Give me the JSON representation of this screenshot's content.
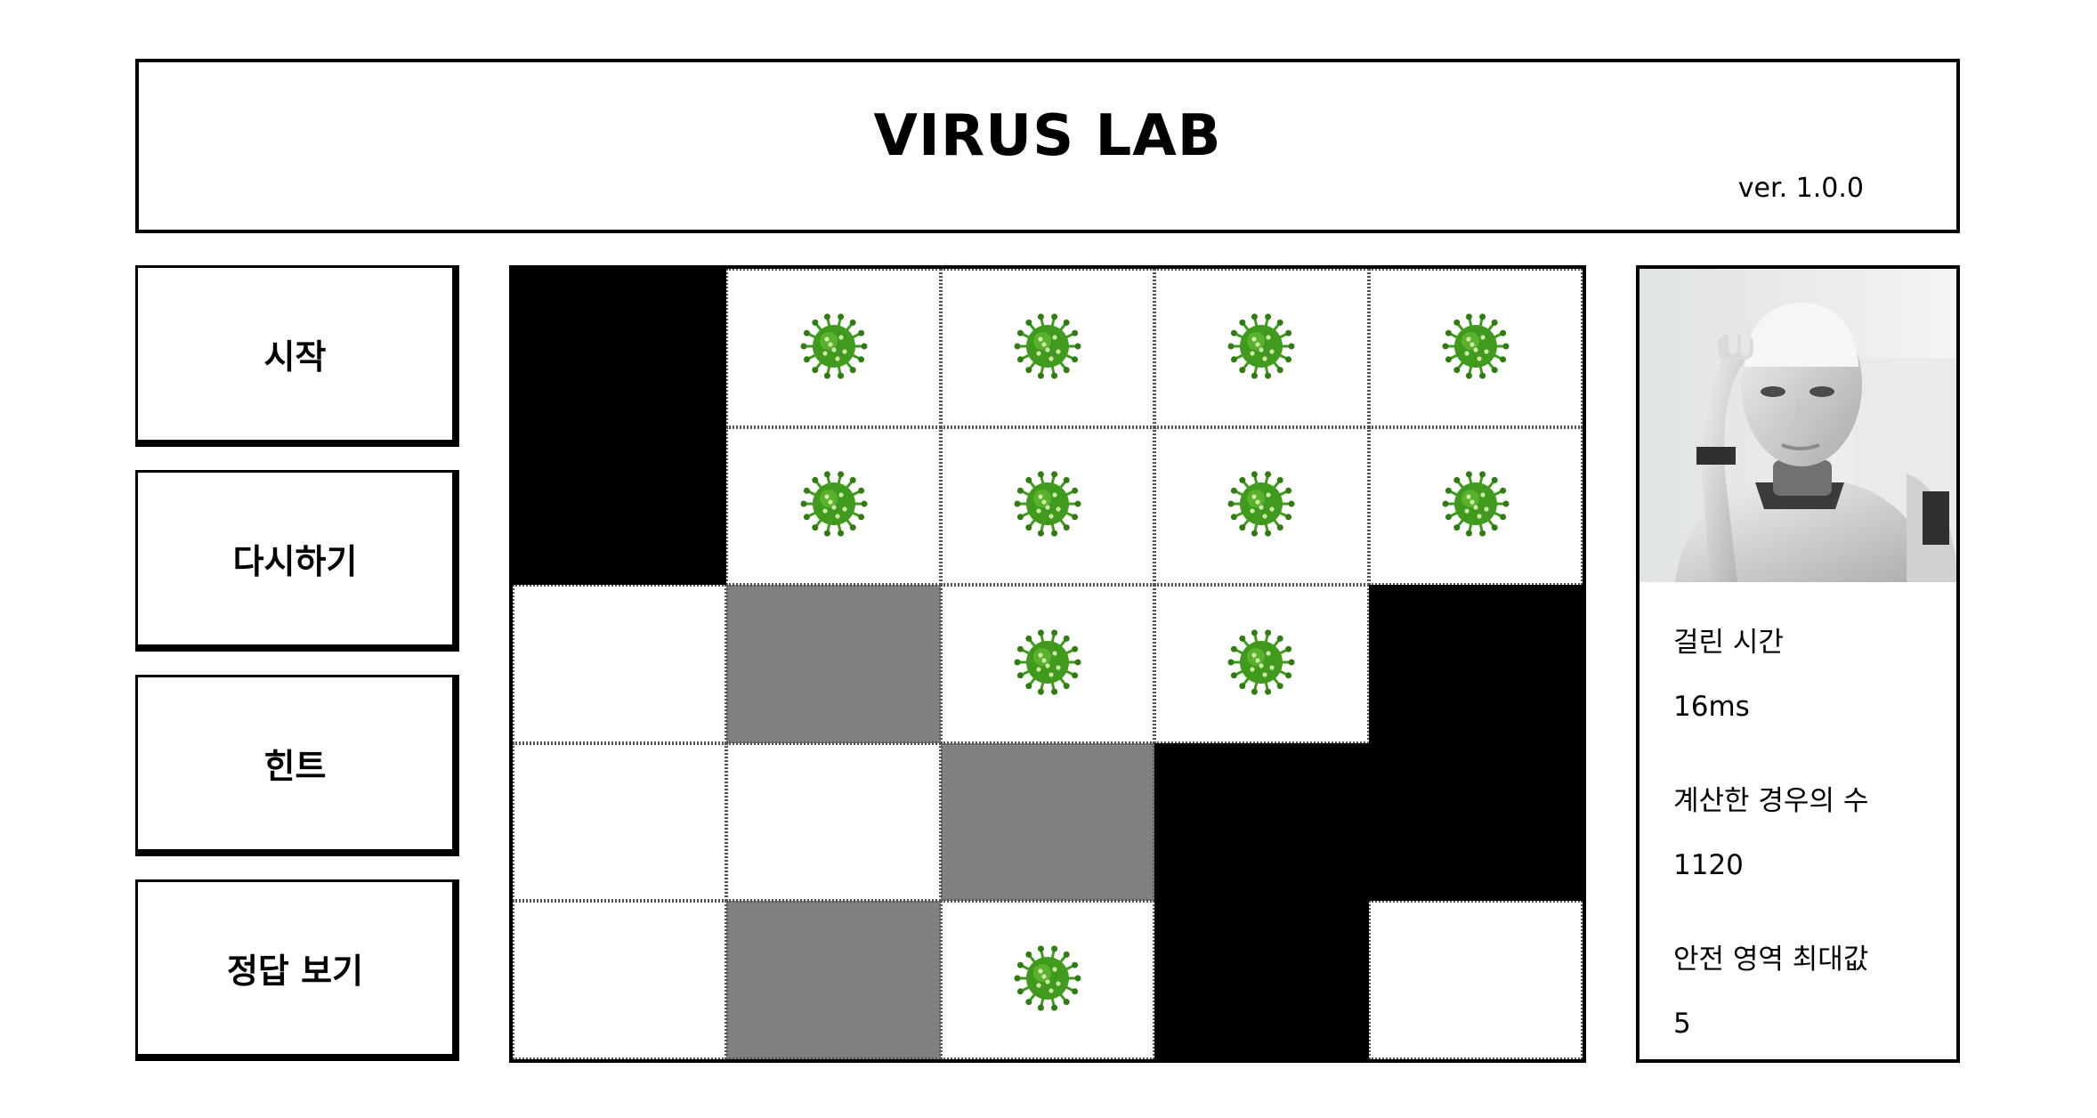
{
  "header": {
    "title": "VIRUS LAB",
    "version": "ver. 1.0.0"
  },
  "sidebar": {
    "buttons": [
      {
        "label": "시작"
      },
      {
        "label": "다시하기"
      },
      {
        "label": "힌트"
      },
      {
        "label": "정답 보기"
      }
    ]
  },
  "board": {
    "rows": 5,
    "cols": 5,
    "legend": {
      "empty": 0,
      "wall": 1,
      "virus": 2,
      "safe_highlight": 3
    },
    "grid": [
      [
        1,
        2,
        2,
        2,
        2
      ],
      [
        1,
        2,
        2,
        2,
        2
      ],
      [
        0,
        3,
        2,
        2,
        1
      ],
      [
        0,
        0,
        3,
        1,
        1
      ],
      [
        0,
        3,
        2,
        1,
        0
      ]
    ],
    "colors": {
      "empty": "#ffffff",
      "wall": "#000000",
      "safe_highlight": "#808080",
      "virus": "#3f9a1e"
    }
  },
  "info": {
    "portrait_icon": "robot-portrait",
    "stats": [
      {
        "label": "걸린 시간",
        "value": "16ms"
      },
      {
        "label": "계산한 경우의 수",
        "value": "1120"
      },
      {
        "label": "안전 영역 최대값",
        "value": "5"
      }
    ]
  }
}
